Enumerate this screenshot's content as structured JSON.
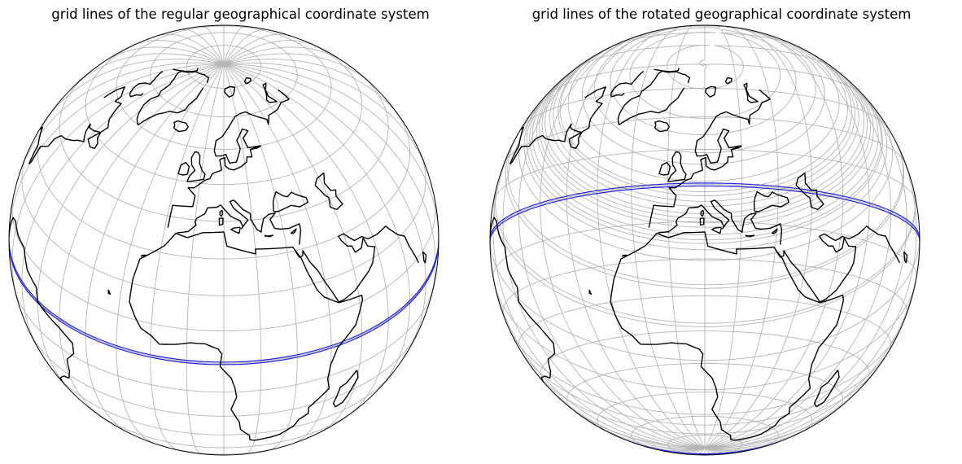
{
  "maps": [
    {
      "title": "grid lines of the regular geographical coordinate system",
      "projection": "orthographic",
      "view_center": {
        "lon": 10,
        "lat": 35
      },
      "graticule": "regular (10° spacing)",
      "highlight_line": "equator",
      "highlight_color": "#2222dd"
    },
    {
      "title": "grid lines of the rotated geographical coordinate system",
      "projection": "orthographic",
      "view_center": {
        "lon": 10,
        "lat": 35
      },
      "graticule": "rotated pole (10° spacing)",
      "highlight_line": "rotated equator",
      "highlight_color": "#2222dd"
    }
  ],
  "colors": {
    "grid": "#b4b4b4",
    "coastline": "#000000",
    "equator": "#2222dd"
  }
}
